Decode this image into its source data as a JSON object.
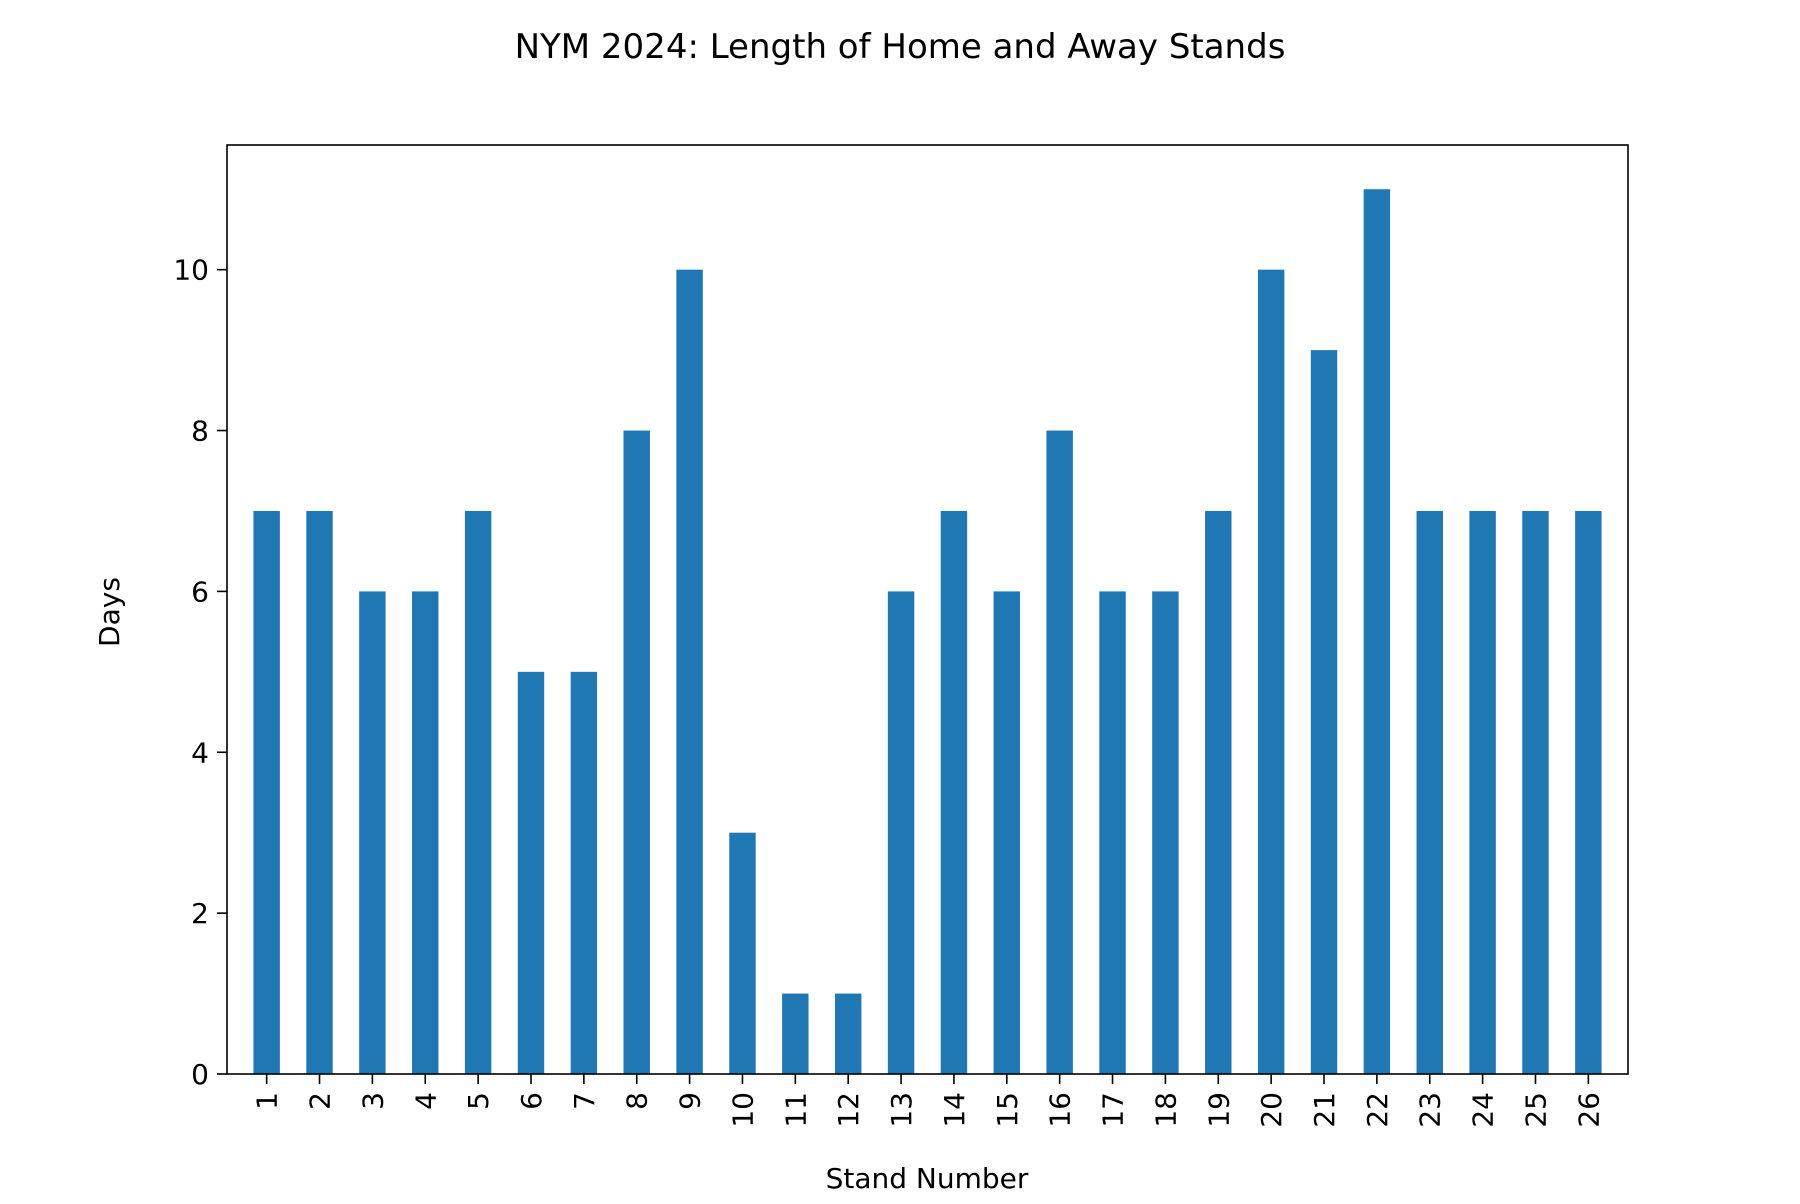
{
  "chart_data": {
    "type": "bar",
    "title": "NYM 2024: Length of Home and Away Stands",
    "xlabel": "Stand Number",
    "ylabel": "Days",
    "categories": [
      "1",
      "2",
      "3",
      "4",
      "5",
      "6",
      "7",
      "8",
      "9",
      "10",
      "11",
      "12",
      "13",
      "14",
      "15",
      "16",
      "17",
      "18",
      "19",
      "20",
      "21",
      "22",
      "23",
      "24",
      "25",
      "26"
    ],
    "values": [
      7,
      7,
      6,
      6,
      7,
      5,
      5,
      8,
      10,
      3,
      1,
      1,
      6,
      7,
      6,
      8,
      6,
      6,
      7,
      10,
      9,
      11,
      7,
      7,
      7,
      7
    ],
    "ylim": [
      0,
      11.55
    ],
    "yticks": [
      0,
      2,
      4,
      6,
      8,
      10
    ],
    "grid": false,
    "legend": "none",
    "bar_color": "#1f77b4"
  }
}
